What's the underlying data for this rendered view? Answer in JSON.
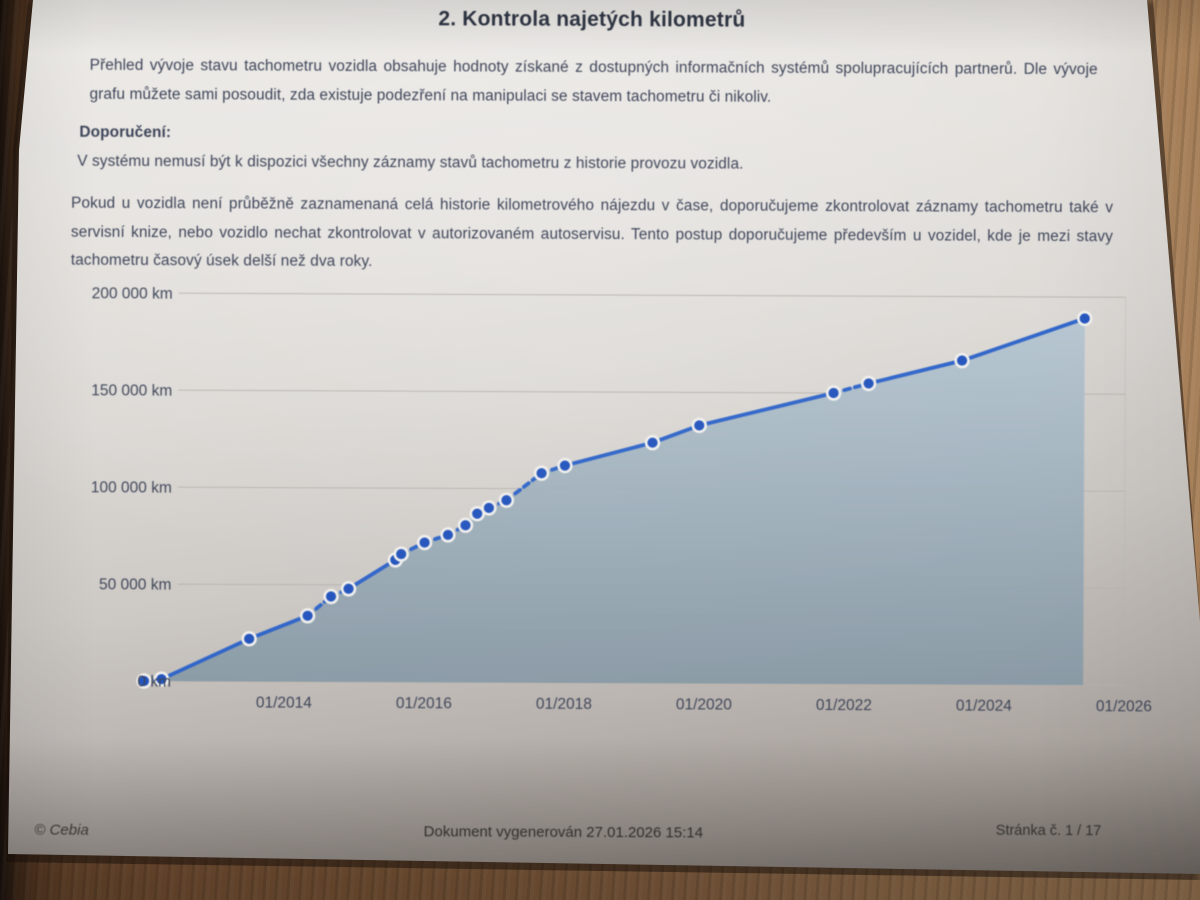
{
  "page": {
    "title": "2. Kontrola najetých kilometrů",
    "intro": "Přehled vývoje stavu tachometru vozidla obsahuje hodnoty získané z dostupných informačních systémů spolupracujících partnerů. Dle vývoje grafu můžete sami posoudit, zda existuje podezření na manipulaci se stavem tachometru či nikoliv.",
    "recommendation_label": "Doporučení:",
    "recommendation_note": "V systému nemusí být k dispozici všechny záznamy stavů tachometru z historie provozu vozidla.",
    "recommendation_paragraph": "Pokud u vozidla není průběžně zaznamenaná celá historie kilometrového nájezdu v čase, doporučujeme zkontrolovat záznamy tachometru také v servisní knize, nebo vozidlo nechat zkontrolovat v autorizovaném autoservisu. Tento postup doporučujeme především u vozidel, kde je mezi stavy tachometru časový úsek delší než dva roky."
  },
  "footer": {
    "copyright": "© Cebia",
    "generated": "Dokument vygenerován 27.01.2026 15:14",
    "page_number": "Stránka č. 1 / 17"
  },
  "chart_data": {
    "type": "line",
    "title": "",
    "xlabel": "",
    "ylabel": "",
    "ylim": [
      0,
      200000
    ],
    "grid": true,
    "legend": false,
    "x_ticks": [
      "01/2014",
      "01/2016",
      "01/2018",
      "01/2020",
      "01/2022",
      "01/2024",
      "01/2026"
    ],
    "y_ticks": [
      {
        "label": "0 km",
        "value": 0
      },
      {
        "label": "50 000 km",
        "value": 50000
      },
      {
        "label": "100 000 km",
        "value": 100000
      },
      {
        "label": "150 000 km",
        "value": 150000
      },
      {
        "label": "200 000 km",
        "value": 200000
      }
    ],
    "points": [
      {
        "date": "01/2012",
        "km": 0
      },
      {
        "date": "04/2012",
        "km": 1000
      },
      {
        "date": "07/2013",
        "km": 22000
      },
      {
        "date": "05/2014",
        "km": 34000
      },
      {
        "date": "09/2014",
        "km": 44000
      },
      {
        "date": "12/2014",
        "km": 48000
      },
      {
        "date": "08/2015",
        "km": 63000
      },
      {
        "date": "09/2015",
        "km": 66000
      },
      {
        "date": "01/2016",
        "km": 72000
      },
      {
        "date": "05/2016",
        "km": 76000
      },
      {
        "date": "08/2016",
        "km": 81000
      },
      {
        "date": "10/2016",
        "km": 87000
      },
      {
        "date": "12/2016",
        "km": 90000
      },
      {
        "date": "03/2017",
        "km": 94000
      },
      {
        "date": "09/2017",
        "km": 108000
      },
      {
        "date": "01/2018",
        "km": 112000
      },
      {
        "date": "04/2019",
        "km": 124000
      },
      {
        "date": "12/2019",
        "km": 133000
      },
      {
        "date": "11/2021",
        "km": 150000
      },
      {
        "date": "05/2022",
        "km": 155000
      },
      {
        "date": "09/2023",
        "km": 167000
      },
      {
        "date": "06/2025",
        "km": 189000
      }
    ],
    "colors": {
      "line": "#2d63c8",
      "point": "#2152bc",
      "point_halo": "#f0efec",
      "area_top": "#b2c4d1",
      "area_bottom": "#8497a4",
      "grid": "#b3afaa",
      "label": "#3c4356"
    }
  }
}
